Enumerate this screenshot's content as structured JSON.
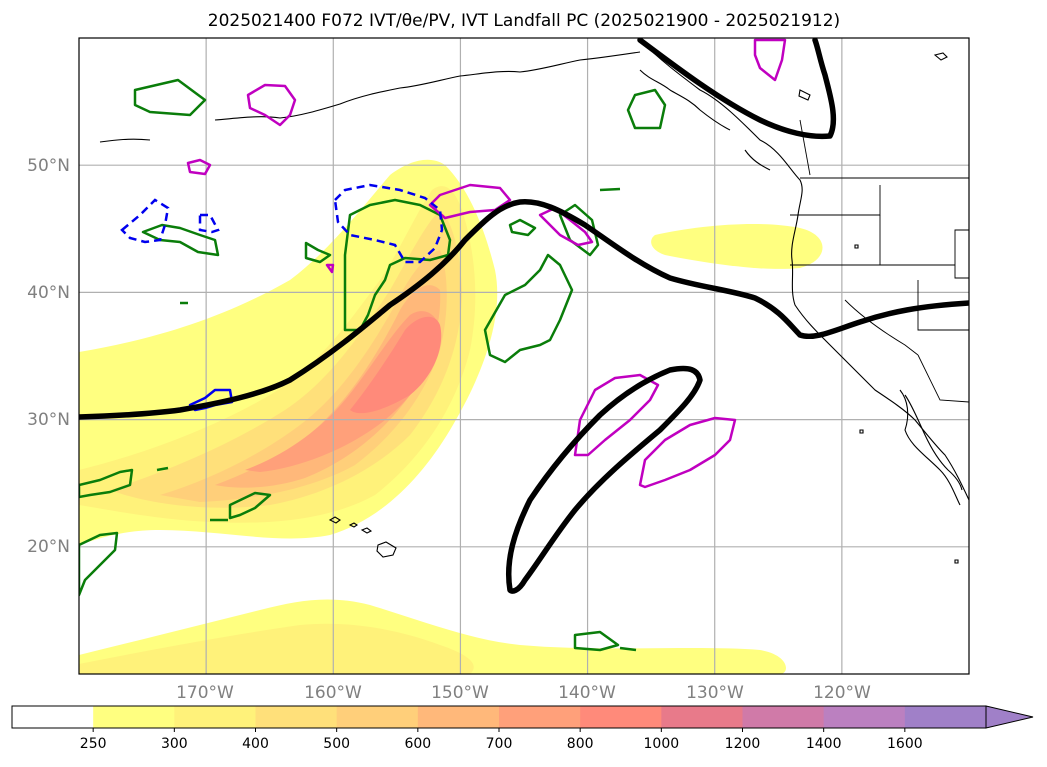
{
  "title": "2025021400 F072 IVT/θe/PV, IVT Landfall PC (2025021900 - 2025021912)",
  "map": {
    "lat_labels": [
      {
        "text": "50°N",
        "lat": 50
      },
      {
        "text": "40°N",
        "lat": 40
      },
      {
        "text": "30°N",
        "lat": 30
      },
      {
        "text": "20°N",
        "lat": 20
      }
    ],
    "lon_labels": [
      {
        "text": "170°W",
        "lon": -170
      },
      {
        "text": "160°W",
        "lon": -160
      },
      {
        "text": "150°W",
        "lon": -150
      },
      {
        "text": "140°W",
        "lon": -140
      },
      {
        "text": "130°W",
        "lon": -130
      },
      {
        "text": "120°W",
        "lon": -120
      }
    ],
    "lon_range": [
      -180,
      -110
    ],
    "lat_range": [
      10,
      60
    ],
    "grid": true
  },
  "colorbar": {
    "levels": [
      "250",
      "300",
      "400",
      "500",
      "600",
      "700",
      "800",
      "1000",
      "1200",
      "1400",
      "1600"
    ],
    "colors": [
      "#ffffff",
      "#ffff80",
      "#fff27a",
      "#ffe07a",
      "#ffcf7a",
      "#ffb87a",
      "#ffa07a",
      "#ff8a7a",
      "#e87a8a",
      "#d07aa8",
      "#bb80c0",
      "#a080c8"
    ],
    "extend": "max"
  },
  "colors": {
    "ivt_line": "#000000",
    "pv_positive": "#0a7d0a",
    "pv_magenta": "#c000c0",
    "pv_blue": "#0000ee",
    "coast": "#000000",
    "grid": "#b0b0b0"
  }
}
